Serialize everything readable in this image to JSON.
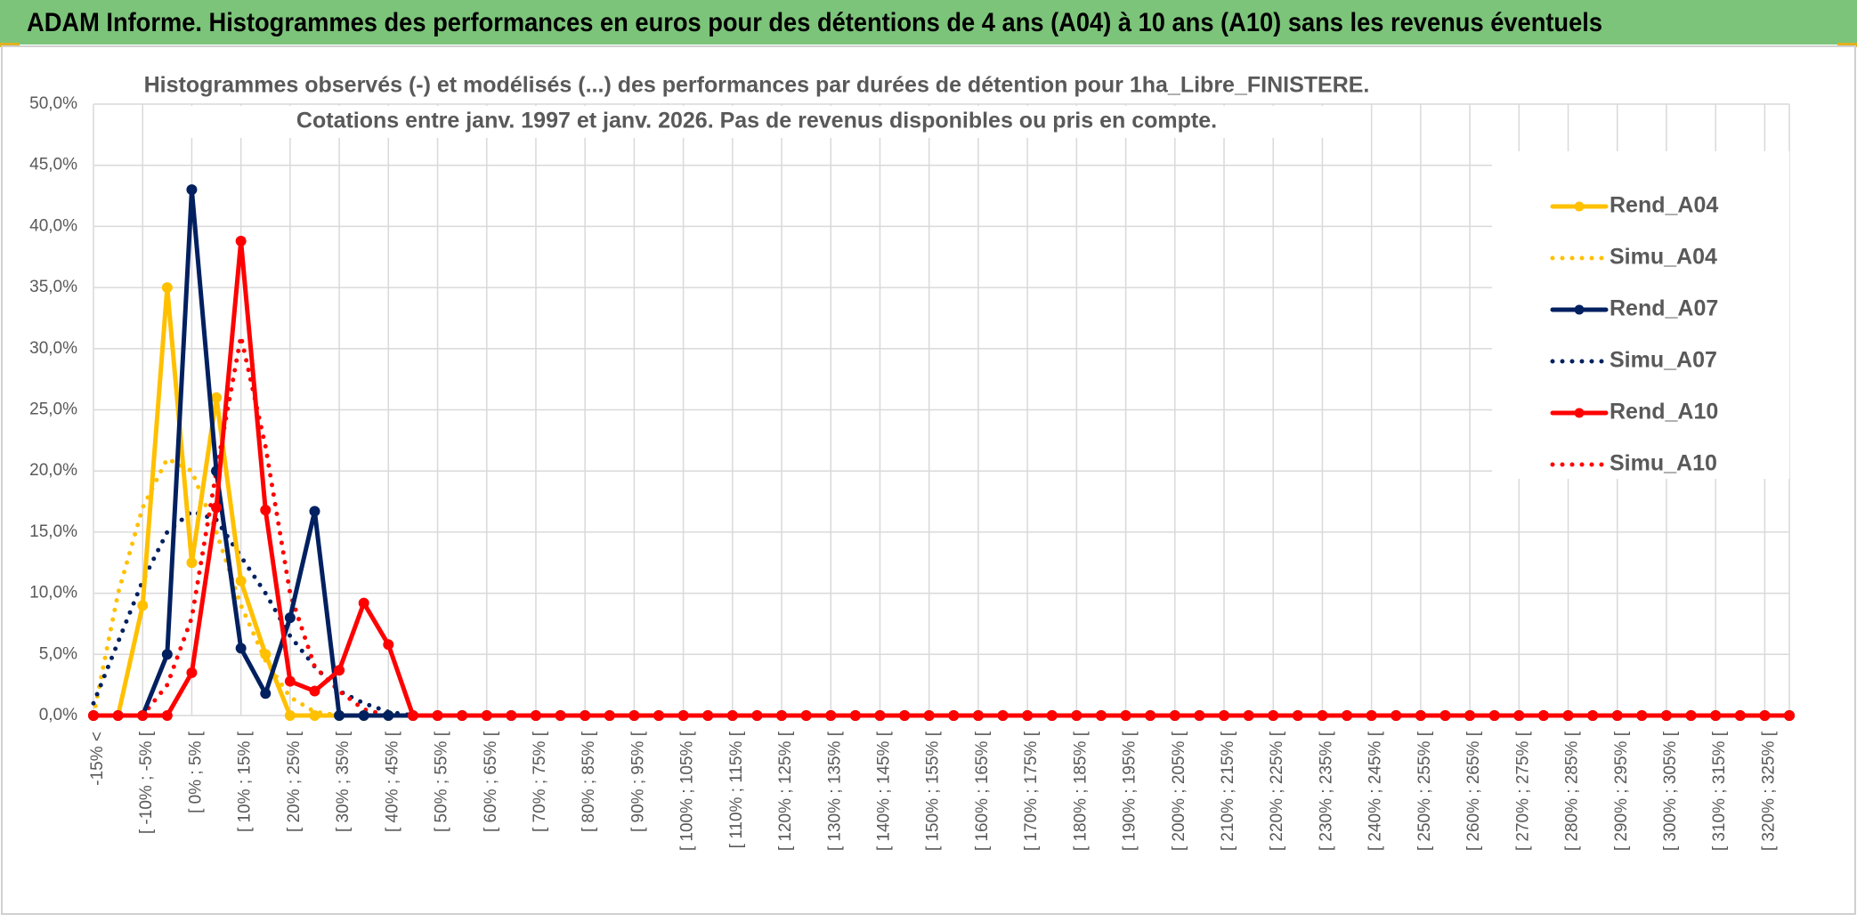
{
  "chart_data": {
    "type": "line",
    "title": "ADAM Informe. Histogrammes des performances en euros pour des détentions de 4 ans (A04) à 10 ans (A10) sans les revenus éventuels",
    "subtitle": [
      "Histogrammes observés (-) et modélisés (...) des performances par durées de détention pour 1ha_Libre_FINISTERE.",
      "Cotations entre janv. 1997 et janv. 2026. Pas de revenus disponibles ou pris en compte."
    ],
    "categories": [
      "-15% <",
      null,
      "[ -10% ; -5% [",
      null,
      "[ 0% ; 5% [",
      null,
      "[ 10% ; 15% [",
      null,
      "[ 20% ; 25% [",
      null,
      "[ 30% ; 35% [",
      null,
      "[ 40% ; 45% [",
      null,
      "[ 50% ; 55% [",
      null,
      "[ 60% ; 65% [",
      null,
      "[ 70% ; 75% [",
      null,
      "[ 80% ; 85% [",
      null,
      "[ 90% ; 95% [",
      null,
      "[ 100% ; 105% [",
      null,
      "[ 110% ; 115% [",
      null,
      "[ 120% ; 125% [",
      null,
      "[ 130% ; 135% [",
      null,
      "[ 140% ; 145% [",
      null,
      "[ 150% ; 155% [",
      null,
      "[ 160% ; 165% [",
      null,
      "[ 170% ; 175% [",
      null,
      "[ 180% ; 185% [",
      null,
      "[ 190% ; 195% [",
      null,
      "[ 200% ; 205% [",
      null,
      "[ 210% ; 215% [",
      null,
      "[ 220% ; 225% [",
      null,
      "[ 230% ; 235% [",
      null,
      "[ 240% ; 245% [",
      null,
      "[ 250% ; 255% [",
      null,
      "[ 260% ; 265% [",
      null,
      "[ 270% ; 275% [",
      null,
      "[ 280% ; 285% [",
      null,
      "[ 290% ; 295% [",
      null,
      "[ 300% ; 305% [",
      null,
      "[ 310% ; 315% [",
      null,
      "[ 320% ; 325% [",
      null
    ],
    "series": [
      {
        "name": "Rend_A04",
        "color": "#FFC000",
        "style": "solid",
        "markers": true,
        "values": [
          0,
          0,
          9,
          35,
          12.5,
          26,
          11,
          5,
          0,
          0,
          0,
          0,
          0,
          0,
          0,
          0,
          0,
          0,
          0,
          0,
          0,
          0,
          0,
          0,
          0,
          0,
          0,
          0,
          0,
          0,
          0,
          0,
          0,
          0,
          0,
          0,
          0,
          0,
          0,
          0,
          0,
          0,
          0,
          0,
          0,
          0,
          0,
          0,
          0,
          0,
          0,
          0,
          0,
          0,
          0,
          0,
          0,
          0,
          0,
          0,
          0,
          0,
          0,
          0,
          0,
          0,
          0,
          0,
          0,
          0
        ]
      },
      {
        "name": "Simu_A04",
        "color": "#FFC000",
        "style": "dotted",
        "markers": false,
        "values": [
          0,
          10,
          17,
          21,
          20,
          15,
          9,
          4.5,
          1.5,
          0.3,
          0,
          0,
          0,
          0,
          0,
          0,
          0,
          0,
          0,
          0,
          0,
          0,
          0,
          0,
          0,
          0,
          0,
          0,
          0,
          0,
          0,
          0,
          0,
          0,
          0,
          0,
          0,
          0,
          0,
          0,
          0,
          0,
          0,
          0,
          0,
          0,
          0,
          0,
          0,
          0,
          0,
          0,
          0,
          0,
          0,
          0,
          0,
          0,
          0,
          0,
          0,
          0,
          0,
          0,
          0,
          0,
          0,
          0,
          0,
          0
        ]
      },
      {
        "name": "Rend_A07",
        "color": "#002060",
        "style": "solid",
        "markers": true,
        "values": [
          0,
          0,
          0,
          5,
          43,
          20,
          5.5,
          1.8,
          8,
          16.7,
          0,
          0,
          0,
          0,
          0,
          0,
          0,
          0,
          0,
          0,
          0,
          0,
          0,
          0,
          0,
          0,
          0,
          0,
          0,
          0,
          0,
          0,
          0,
          0,
          0,
          0,
          0,
          0,
          0,
          0,
          0,
          0,
          0,
          0,
          0,
          0,
          0,
          0,
          0,
          0,
          0,
          0,
          0,
          0,
          0,
          0,
          0,
          0,
          0,
          0,
          0,
          0,
          0,
          0,
          0,
          0,
          0,
          0,
          0,
          0
        ]
      },
      {
        "name": "Simu_A07",
        "color": "#002060",
        "style": "dotted",
        "markers": false,
        "values": [
          1,
          6,
          11,
          15,
          16.7,
          16,
          13,
          10,
          6.5,
          4,
          2,
          1,
          0.3,
          0,
          0,
          0,
          0,
          0,
          0,
          0,
          0,
          0,
          0,
          0,
          0,
          0,
          0,
          0,
          0,
          0,
          0,
          0,
          0,
          0,
          0,
          0,
          0,
          0,
          0,
          0,
          0,
          0,
          0,
          0,
          0,
          0,
          0,
          0,
          0,
          0,
          0,
          0,
          0,
          0,
          0,
          0,
          0,
          0,
          0,
          0,
          0,
          0,
          0,
          0,
          0,
          0,
          0,
          0,
          0,
          0
        ]
      },
      {
        "name": "Rend_A10",
        "color": "#FF0000",
        "style": "solid",
        "markers": true,
        "values": [
          0,
          0,
          0,
          0,
          3.5,
          17,
          38.8,
          16.8,
          2.8,
          2,
          3.7,
          9.2,
          5.8,
          0,
          0,
          0,
          0,
          0,
          0,
          0,
          0,
          0,
          0,
          0,
          0,
          0,
          0,
          0,
          0,
          0,
          0,
          0,
          0,
          0,
          0,
          0,
          0,
          0,
          0,
          0,
          0,
          0,
          0,
          0,
          0,
          0,
          0,
          0,
          0,
          0,
          0,
          0,
          0,
          0,
          0,
          0,
          0,
          0,
          0,
          0,
          0,
          0,
          0,
          0,
          0,
          0,
          0,
          0,
          0,
          0
        ]
      },
      {
        "name": "Simu_A10",
        "color": "#FF0000",
        "style": "dotted",
        "markers": false,
        "values": [
          0,
          0,
          0,
          2.5,
          8,
          20,
          31,
          22,
          10,
          4,
          2,
          0.5,
          0,
          0,
          0,
          0,
          0,
          0,
          0,
          0,
          0,
          0,
          0,
          0,
          0,
          0,
          0,
          0,
          0,
          0,
          0,
          0,
          0,
          0,
          0,
          0,
          0,
          0,
          0,
          0,
          0,
          0,
          0,
          0,
          0,
          0,
          0,
          0,
          0,
          0,
          0,
          0,
          0,
          0,
          0,
          0,
          0,
          0,
          0,
          0,
          0,
          0,
          0,
          0,
          0,
          0,
          0,
          0,
          0,
          0
        ]
      }
    ],
    "ylim": [
      0,
      50
    ],
    "yticks": [
      {
        "value": 0,
        "label": "0,0%"
      },
      {
        "value": 5,
        "label": "5,0%"
      },
      {
        "value": 10,
        "label": "10,0%"
      },
      {
        "value": 15,
        "label": "15,0%"
      },
      {
        "value": 20,
        "label": "20,0%"
      },
      {
        "value": 25,
        "label": "25,0%"
      },
      {
        "value": 30,
        "label": "30,0%"
      },
      {
        "value": 35,
        "label": "35,0%"
      },
      {
        "value": 40,
        "label": "40,0%"
      },
      {
        "value": 45,
        "label": "45,0%"
      },
      {
        "value": 50,
        "label": "50,0%"
      }
    ],
    "grid": true,
    "legend": "right"
  }
}
